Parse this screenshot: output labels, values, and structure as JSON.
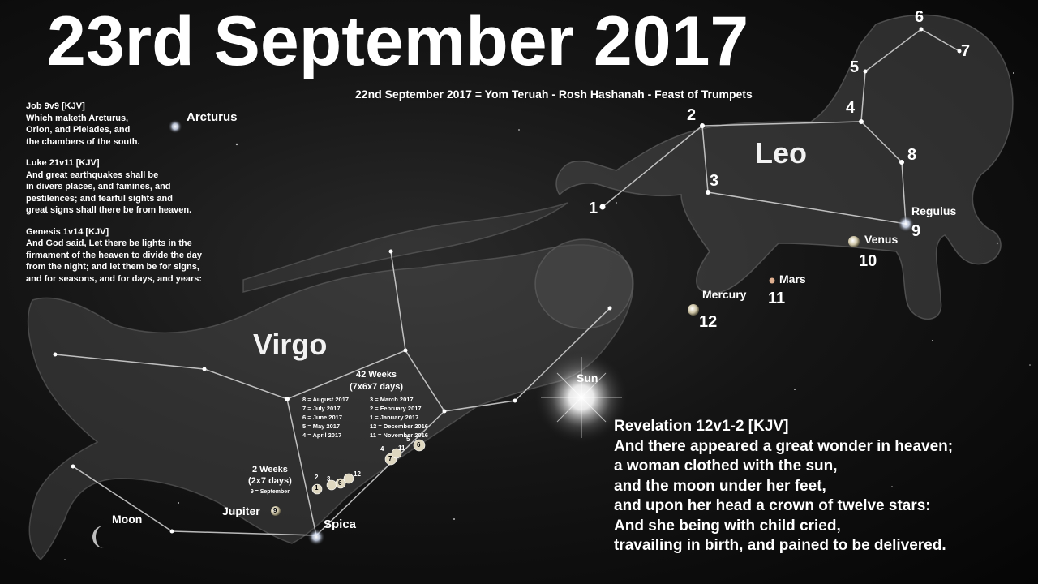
{
  "title": "23rd September 2017",
  "subtitle": "22nd September 2017 = Yom Teruah - Rosh Hashanah - Feast of Trumpets",
  "verses": [
    {
      "ref": "Job 9v9 [KJV]",
      "lines": [
        "Which maketh Arcturus,",
        "Orion, and Pleiades, and",
        "the chambers of the south."
      ]
    },
    {
      "ref": "Luke 21v11 [KJV]",
      "lines": [
        "And great earthquakes shall be",
        "in divers places, and famines, and",
        "pestilences; and fearful sights and",
        "great signs shall there be from heaven."
      ]
    },
    {
      "ref": "Genesis 1v14 [KJV]",
      "lines": [
        "And God said, Let there be lights in the",
        "firmament of the heaven to divide the day",
        "from the night; and let them be for signs,",
        "and for seasons, and for days, and years:"
      ]
    }
  ],
  "revelation": {
    "ref": "Revelation 12v1-2 [KJV]",
    "lines": [
      "And there appeared a great wonder in heaven;",
      "a woman clothed with the sun,",
      "and the moon under her feet,",
      "and upon her head a crown of twelve stars:",
      "And she being with child cried,",
      "travailing in birth, and pained to be delivered."
    ]
  },
  "constellations": {
    "leo": "Leo",
    "virgo": "Virgo"
  },
  "stars": {
    "arcturus": "Arcturus",
    "regulus": "Regulus",
    "spica": "Spica"
  },
  "bodies": {
    "venus": "Venus",
    "mars": "Mars",
    "mercury": "Mercury",
    "sun": "Sun",
    "moon": "Moon",
    "jupiter": "Jupiter"
  },
  "crown_numbers": [
    "1",
    "2",
    "3",
    "4",
    "5",
    "6",
    "7",
    "8",
    "9",
    "10",
    "11",
    "12"
  ],
  "weeks42": {
    "line1": "42 Weeks",
    "line2": "(7x6x7 days)"
  },
  "weeks2": {
    "line1": "2 Weeks",
    "line2": "(2x7 days)",
    "line3": "9 = September"
  },
  "months": [
    [
      "8 = August 2017",
      "3 = March 2017"
    ],
    [
      "7 = July 2017",
      "2 = February 2017"
    ],
    [
      "6 = June 2017",
      "1 = January 2017"
    ],
    [
      "5 = May 2017",
      "12 = December 2016"
    ],
    [
      "4 = April 2017",
      "11 = November 2016"
    ]
  ],
  "path_markers": [
    "1",
    "2",
    "3",
    "6",
    "12",
    "4",
    "7",
    "11",
    "5",
    "6"
  ],
  "jupiter_marker": "9"
}
